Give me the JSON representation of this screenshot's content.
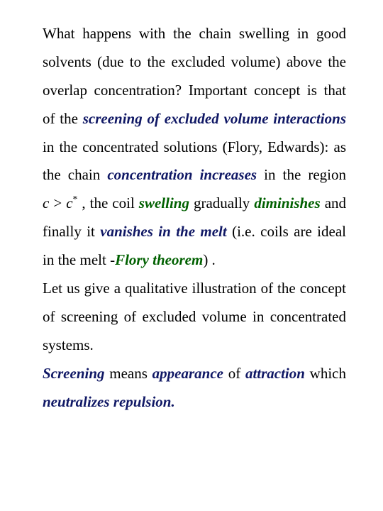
{
  "colors": {
    "text": "#000000",
    "emphasis_navy": "#101865",
    "emphasis_green": "#006000",
    "background": "#ffffff"
  },
  "font": {
    "family": "Times New Roman",
    "size_pt": 21,
    "line_height": 1.9
  },
  "text": {
    "p1a": "What happens with the chain swelling in good solvents (due to the excluded volume) above the overlap concentration? Important concept is that of the ",
    "p1b": "screening of excluded volume interactions",
    "p1c": " in the concentrated solutions (Flory, Edwards): as the chain ",
    "p1d": "concentration increases",
    "p1e": " in the region ",
    "math1_c": "c",
    "math1_gt": ">",
    "math1_c2": "c",
    "math1_star": "*",
    "p1f": " , the coil ",
    "p1g": "swelling",
    "p1h": " gradually ",
    "p1i": "diminishes",
    "p1j": " and finally it ",
    "p1k": "vanishes in the melt",
    "p1l": " (i.e. coils are ideal in the melt -",
    "p1m": "Flory theorem",
    "p1n": ") .",
    "p2": "Let us give a qualitative illustration of the concept of screening of excluded volume in concentrated systems.",
    "p3a": "Screening",
    "p3b": " means ",
    "p3c": "appearance",
    "p3d": " of ",
    "p3e": "attraction",
    "p3f": " which ",
    "p3g": "neutralizes repulsion."
  }
}
